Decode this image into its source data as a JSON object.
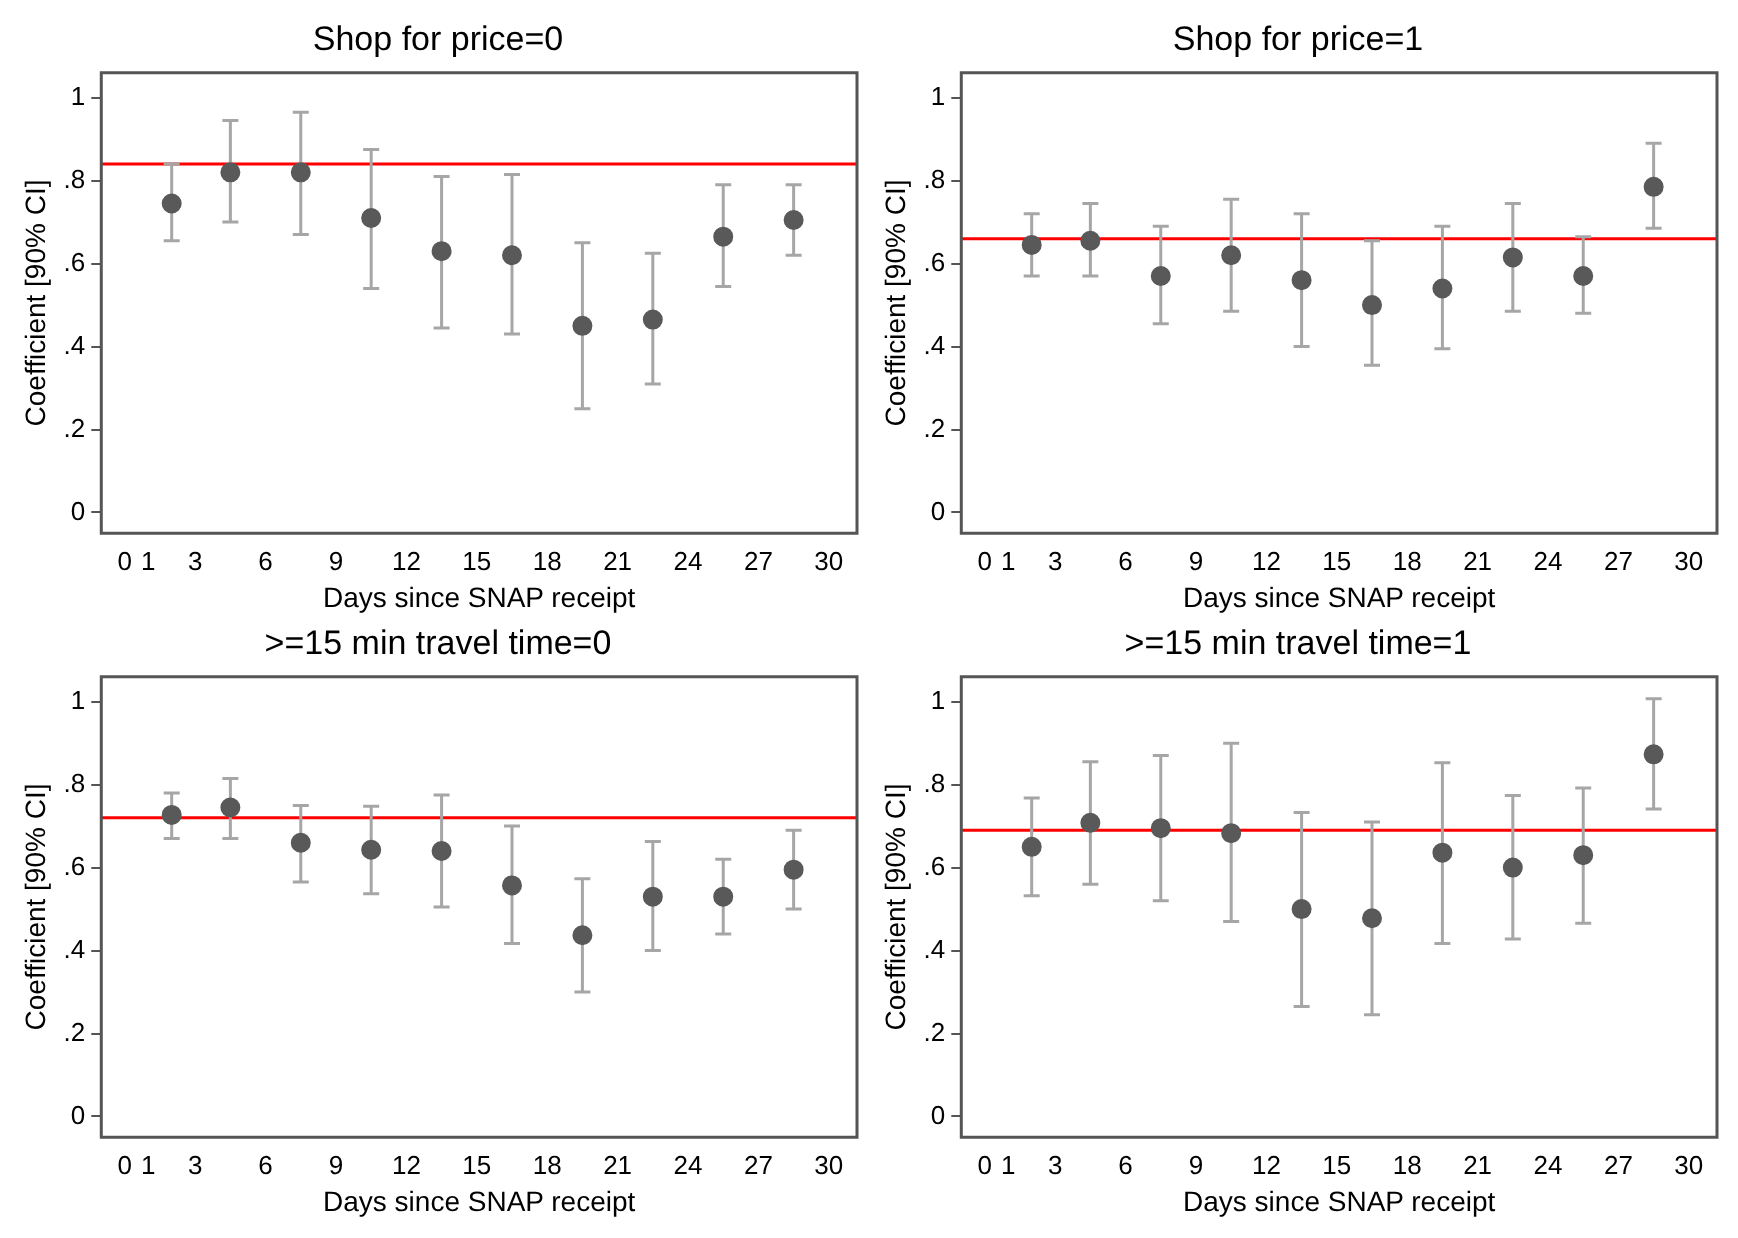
{
  "chart_data": [
    {
      "type": "scatter",
      "title": "Shop for price=0",
      "xlabel": "Days since SNAP receipt",
      "ylabel": "Coefficient [90% CI]",
      "marker": "circle",
      "grid": false,
      "legend": false,
      "x": [
        2,
        4.5,
        7.5,
        10.5,
        13.5,
        16.5,
        19.5,
        22.5,
        25.5,
        28.5
      ],
      "series": [
        {
          "color": "#595959",
          "values": [
            0.745,
            0.82,
            0.82,
            0.71,
            0.63,
            0.62,
            0.45,
            0.465,
            0.665,
            0.705
          ],
          "errors": [
            [
              0.655,
              0.84
            ],
            [
              0.7,
              0.945
            ],
            [
              0.67,
              0.965
            ],
            [
              0.54,
              0.875
            ],
            [
              0.445,
              0.81
            ],
            [
              0.43,
              0.815
            ],
            [
              0.25,
              0.65
            ],
            [
              0.31,
              0.625
            ],
            [
              0.545,
              0.79
            ],
            [
              0.62,
              0.79
            ]
          ]
        }
      ],
      "xlim": [
        -1,
        31.2
      ],
      "ylim": [
        -0.05,
        1.06
      ],
      "xticks": [
        0,
        1,
        3,
        6,
        9,
        12,
        15,
        18,
        21,
        24,
        27,
        30
      ],
      "yticks": [
        {
          "value": 0,
          "label": "0"
        },
        {
          "value": 0.2,
          "label": ".2"
        },
        {
          "value": 0.4,
          "label": ".4"
        },
        {
          "value": 0.6,
          "label": ".6"
        },
        {
          "value": 0.8,
          "label": ".8"
        },
        {
          "value": 1,
          "label": "1"
        }
      ],
      "ref_lines": [
        {
          "axis": "y",
          "value": 0.84,
          "color": "#ff0000"
        }
      ]
    },
    {
      "type": "scatter",
      "title": "Shop for price=1",
      "xlabel": "Days since SNAP receipt",
      "ylabel": "Coefficient [90% CI]",
      "marker": "circle",
      "grid": false,
      "legend": false,
      "x": [
        2,
        4.5,
        7.5,
        10.5,
        13.5,
        16.5,
        19.5,
        22.5,
        25.5,
        28.5
      ],
      "series": [
        {
          "color": "#595959",
          "values": [
            0.645,
            0.655,
            0.57,
            0.62,
            0.56,
            0.5,
            0.54,
            0.615,
            0.57,
            0.785
          ],
          "errors": [
            [
              0.57,
              0.72
            ],
            [
              0.57,
              0.745
            ],
            [
              0.455,
              0.69
            ],
            [
              0.485,
              0.755
            ],
            [
              0.4,
              0.72
            ],
            [
              0.355,
              0.655
            ],
            [
              0.395,
              0.69
            ],
            [
              0.485,
              0.745
            ],
            [
              0.48,
              0.665
            ],
            [
              0.685,
              0.89
            ]
          ]
        }
      ],
      "xlim": [
        -1,
        31.2
      ],
      "ylim": [
        -0.05,
        1.06
      ],
      "xticks": [
        0,
        1,
        3,
        6,
        9,
        12,
        15,
        18,
        21,
        24,
        27,
        30
      ],
      "yticks": [
        {
          "value": 0,
          "label": "0"
        },
        {
          "value": 0.2,
          "label": ".2"
        },
        {
          "value": 0.4,
          "label": ".4"
        },
        {
          "value": 0.6,
          "label": ".6"
        },
        {
          "value": 0.8,
          "label": ".8"
        },
        {
          "value": 1,
          "label": "1"
        }
      ],
      "ref_lines": [
        {
          "axis": "y",
          "value": 0.66,
          "color": "#ff0000"
        }
      ]
    },
    {
      "type": "scatter",
      "title": ">=15 min travel time=0",
      "xlabel": "Days since SNAP receipt",
      "ylabel": "Coefficient [90% CI]",
      "marker": "circle",
      "grid": false,
      "legend": false,
      "x": [
        2,
        4.5,
        7.5,
        10.5,
        13.5,
        16.5,
        19.5,
        22.5,
        25.5,
        28.5
      ],
      "series": [
        {
          "color": "#595959",
          "values": [
            0.727,
            0.745,
            0.66,
            0.643,
            0.64,
            0.557,
            0.437,
            0.53,
            0.53,
            0.595
          ],
          "errors": [
            [
              0.67,
              0.78
            ],
            [
              0.67,
              0.815
            ],
            [
              0.565,
              0.75
            ],
            [
              0.537,
              0.748
            ],
            [
              0.505,
              0.775
            ],
            [
              0.417,
              0.7
            ],
            [
              0.3,
              0.573
            ],
            [
              0.4,
              0.663
            ],
            [
              0.44,
              0.62
            ],
            [
              0.5,
              0.69
            ]
          ]
        }
      ],
      "xlim": [
        -1,
        31.2
      ],
      "ylim": [
        -0.05,
        1.06
      ],
      "xticks": [
        0,
        1,
        3,
        6,
        9,
        12,
        15,
        18,
        21,
        24,
        27,
        30
      ],
      "yticks": [
        {
          "value": 0,
          "label": "0"
        },
        {
          "value": 0.2,
          "label": ".2"
        },
        {
          "value": 0.4,
          "label": ".4"
        },
        {
          "value": 0.6,
          "label": ".6"
        },
        {
          "value": 0.8,
          "label": ".8"
        },
        {
          "value": 1,
          "label": "1"
        }
      ],
      "ref_lines": [
        {
          "axis": "y",
          "value": 0.72,
          "color": "#ff0000"
        }
      ]
    },
    {
      "type": "scatter",
      "title": ">=15 min travel time=1",
      "xlabel": "Days since SNAP receipt",
      "ylabel": "Coefficient [90% CI]",
      "marker": "circle",
      "grid": false,
      "legend": false,
      "x": [
        2,
        4.5,
        7.5,
        10.5,
        13.5,
        16.5,
        19.5,
        22.5,
        25.5,
        28.5
      ],
      "series": [
        {
          "color": "#595959",
          "values": [
            0.65,
            0.708,
            0.695,
            0.683,
            0.5,
            0.478,
            0.636,
            0.6,
            0.63,
            0.873
          ],
          "errors": [
            [
              0.532,
              0.768
            ],
            [
              0.56,
              0.855
            ],
            [
              0.52,
              0.87
            ],
            [
              0.47,
              0.9
            ],
            [
              0.265,
              0.733
            ],
            [
              0.245,
              0.71
            ],
            [
              0.417,
              0.853
            ],
            [
              0.428,
              0.774
            ],
            [
              0.466,
              0.792
            ],
            [
              0.741,
              1.007
            ]
          ]
        }
      ],
      "xlim": [
        -1,
        31.2
      ],
      "ylim": [
        -0.05,
        1.06
      ],
      "xticks": [
        0,
        1,
        3,
        6,
        9,
        12,
        15,
        18,
        21,
        24,
        27,
        30
      ],
      "yticks": [
        {
          "value": 0,
          "label": "0"
        },
        {
          "value": 0.2,
          "label": ".2"
        },
        {
          "value": 0.4,
          "label": ".4"
        },
        {
          "value": 0.6,
          "label": ".6"
        },
        {
          "value": 0.8,
          "label": ".8"
        },
        {
          "value": 1,
          "label": "1"
        }
      ],
      "ref_lines": [
        {
          "axis": "y",
          "value": 0.69,
          "color": "#ff0000"
        }
      ]
    }
  ]
}
